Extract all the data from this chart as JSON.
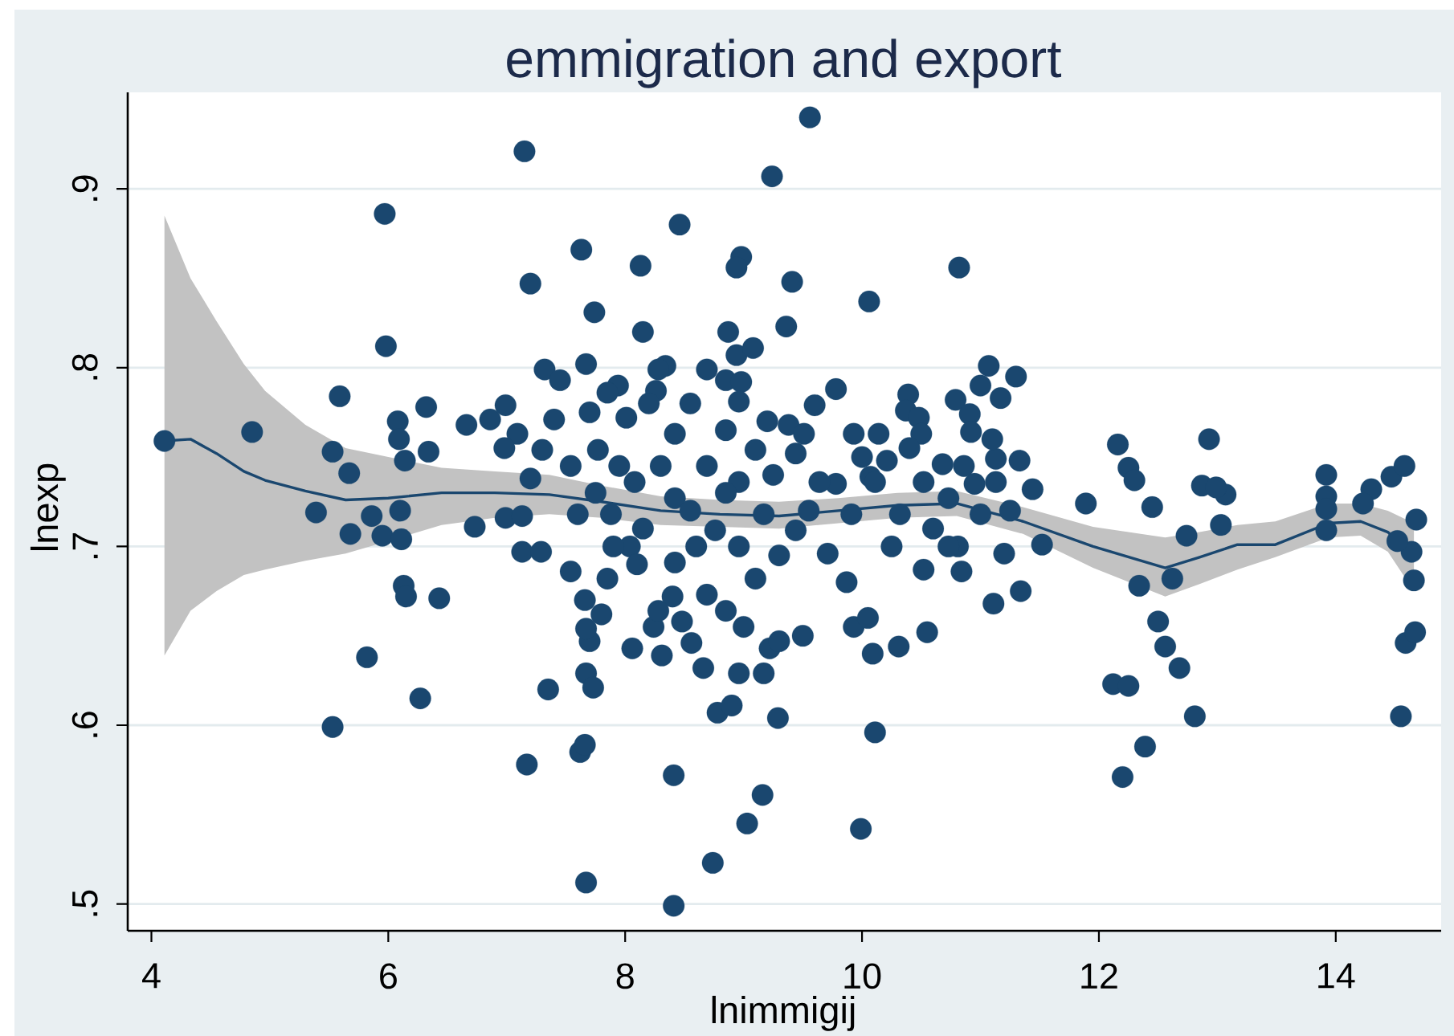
{
  "chart_data": {
    "type": "scatter",
    "title": "emmigration and export",
    "xlabel": "lnimmigij",
    "ylabel": "lnexp",
    "xlim": [
      3.8,
      14.89
    ],
    "ylim": [
      0.485,
      0.954
    ],
    "xticks": [
      4,
      6,
      8,
      10,
      12,
      14
    ],
    "yticks": [
      {
        "value": 0.5,
        "label": ".5"
      },
      {
        "value": 0.6,
        "label": ".6"
      },
      {
        "value": 0.7,
        "label": ".7"
      },
      {
        "value": 0.8,
        "label": ".8"
      },
      {
        "value": 0.9,
        "label": ".9"
      }
    ],
    "grid": "y",
    "series": [
      {
        "color": "#1a476f",
        "marker": "circle",
        "x": [
          4.11,
          4.85,
          5.59,
          5.53,
          5.67,
          5.97,
          5.98,
          6.32,
          6.08,
          6.09,
          6.14,
          6.34,
          7.15,
          7.2,
          6.66,
          6.86,
          6.99,
          7.09,
          6.98,
          7.3,
          7.2,
          7.32,
          7.45,
          7.63,
          7.74,
          7.67,
          8.13,
          8.15,
          8.46,
          8.34,
          8.87,
          8.98,
          8.94,
          9.24,
          9.36,
          9.41,
          8.94,
          9.08,
          8.85,
          8.98,
          7.94,
          8.26,
          7.4,
          9.56,
          10.06,
          10.82,
          9.6,
          9.78,
          11.07,
          11.3,
          11.0,
          11.17,
          10.79,
          10.91,
          10.92,
          10.39,
          10.37,
          10.48,
          10.5,
          9.93,
          10.14,
          9.38,
          9.44,
          12.16,
          12.25,
          12.3,
          12.93,
          12.87,
          13.07,
          12.99,
          11.89,
          12.45,
          13.92,
          13.92,
          14.3,
          14.47,
          14.58,
          14.23,
          11.44,
          11.33,
          11.13,
          10.21,
          10.68,
          9.78,
          10.07,
          5.39,
          5.68,
          5.86,
          5.95,
          6.1,
          6.11,
          6.13,
          6.15,
          6.43,
          5.82,
          6.27,
          5.53,
          6.73,
          6.99,
          7.13,
          7.13,
          7.29,
          7.35,
          7.17,
          7.62,
          7.66,
          7.67,
          8.41,
          8.41,
          8.74,
          9.03,
          9.16,
          9.29,
          8.78,
          8.9,
          7.67,
          7.73,
          8.06,
          8.31,
          8.24,
          8.66,
          8.96,
          9.17,
          9.22,
          9.3,
          8.48,
          8.4,
          7.7,
          7.67,
          7.8,
          7.66,
          7.54,
          9.0,
          8.85,
          9.99,
          10.11,
          10.09,
          10.31,
          10.55,
          9.93,
          10.05,
          9.5,
          9.87,
          11.11,
          11.34,
          10.84,
          10.81,
          11.52,
          12.74,
          13.03,
          12.62,
          12.34,
          12.5,
          12.56,
          12.68,
          12.81,
          12.12,
          12.25,
          12.39,
          12.2,
          14.55,
          14.59,
          14.67,
          14.66,
          14.64,
          14.52,
          13.92,
          13.92,
          14.68,
          7.85,
          8.01,
          7.77,
          8.08,
          7.88,
          8.04,
          7.85,
          8.42,
          8.69,
          8.42,
          8.76,
          8.42,
          8.69,
          8.96,
          9.1,
          8.96,
          9.17,
          8.96,
          9.1,
          9.51,
          9.64,
          9.44,
          9.71,
          9.91,
          10.11,
          10.32,
          10.25,
          10.52,
          10.73,
          10.86,
          11.0,
          11.13,
          10.73,
          10.52,
          11.2,
          8.28,
          8.69,
          7.54,
          7.6,
          8.28,
          8.56,
          7.7,
          7.75,
          7.95,
          8.2,
          8.15,
          8.3,
          8.55,
          8.6,
          8.85,
          8.85,
          9.2,
          9.25,
          9.3,
          9.55,
          10.0,
          10.4,
          10.6,
          10.95,
          11.25,
          11.1,
          8.1,
          7.9,
          8.55
        ],
        "values": [
          0.759,
          0.764,
          0.784,
          0.753,
          0.741,
          0.886,
          0.812,
          0.778,
          0.77,
          0.76,
          0.748,
          0.753,
          0.921,
          0.847,
          0.768,
          0.771,
          0.779,
          0.763,
          0.755,
          0.754,
          0.738,
          0.799,
          0.793,
          0.866,
          0.831,
          0.802,
          0.857,
          0.82,
          0.88,
          0.801,
          0.82,
          0.862,
          0.856,
          0.907,
          0.823,
          0.848,
          0.807,
          0.811,
          0.793,
          0.792,
          0.79,
          0.787,
          0.771,
          0.94,
          0.837,
          0.856,
          0.779,
          0.788,
          0.801,
          0.795,
          0.79,
          0.783,
          0.782,
          0.774,
          0.764,
          0.785,
          0.776,
          0.772,
          0.763,
          0.763,
          0.763,
          0.768,
          0.752,
          0.757,
          0.744,
          0.737,
          0.76,
          0.734,
          0.729,
          0.733,
          0.724,
          0.722,
          0.74,
          0.728,
          0.732,
          0.739,
          0.745,
          0.724,
          0.732,
          0.748,
          0.749,
          0.748,
          0.746,
          0.735,
          0.739,
          0.719,
          0.707,
          0.717,
          0.706,
          0.72,
          0.704,
          0.678,
          0.672,
          0.671,
          0.638,
          0.615,
          0.599,
          0.711,
          0.716,
          0.717,
          0.697,
          0.697,
          0.62,
          0.578,
          0.585,
          0.589,
          0.512,
          0.499,
          0.572,
          0.523,
          0.545,
          0.561,
          0.604,
          0.607,
          0.611,
          0.629,
          0.621,
          0.643,
          0.639,
          0.655,
          0.632,
          0.629,
          0.629,
          0.643,
          0.647,
          0.658,
          0.672,
          0.647,
          0.654,
          0.662,
          0.67,
          0.686,
          0.655,
          0.664,
          0.542,
          0.596,
          0.64,
          0.644,
          0.652,
          0.655,
          0.66,
          0.65,
          0.68,
          0.668,
          0.675,
          0.686,
          0.7,
          0.701,
          0.706,
          0.712,
          0.682,
          0.678,
          0.658,
          0.644,
          0.632,
          0.605,
          0.623,
          0.622,
          0.588,
          0.571,
          0.605,
          0.646,
          0.652,
          0.681,
          0.697,
          0.703,
          0.709,
          0.721,
          0.715,
          0.786,
          0.772,
          0.754,
          0.736,
          0.718,
          0.7,
          0.682,
          0.763,
          0.745,
          0.727,
          0.709,
          0.691,
          0.673,
          0.781,
          0.754,
          0.736,
          0.718,
          0.7,
          0.682,
          0.763,
          0.736,
          0.709,
          0.696,
          0.718,
          0.736,
          0.718,
          0.7,
          0.736,
          0.727,
          0.745,
          0.718,
          0.736,
          0.7,
          0.687,
          0.696,
          0.799,
          0.799,
          0.745,
          0.718,
          0.664,
          0.646,
          0.775,
          0.73,
          0.745,
          0.78,
          0.71,
          0.745,
          0.78,
          0.7,
          0.73,
          0.765,
          0.77,
          0.74,
          0.695,
          0.72,
          0.75,
          0.755,
          0.71,
          0.735,
          0.72,
          0.76,
          0.69,
          0.7,
          0.72
        ]
      },
      {
        "type": "line",
        "color": "#1a476f",
        "marker": "none",
        "x": [
          4.11,
          4.33,
          4.55,
          4.78,
          4.96,
          5.3,
          5.64,
          6.0,
          6.45,
          6.9,
          7.36,
          7.8,
          8.3,
          8.8,
          9.3,
          9.8,
          10.3,
          10.8,
          11.36,
          11.95,
          12.56,
          12.85,
          13.17,
          13.49,
          13.94,
          14.21,
          14.44,
          14.66
        ],
        "values": [
          0.759,
          0.76,
          0.752,
          0.742,
          0.737,
          0.731,
          0.726,
          0.727,
          0.73,
          0.73,
          0.729,
          0.725,
          0.72,
          0.718,
          0.717,
          0.72,
          0.723,
          0.724,
          0.714,
          0.7,
          0.688,
          0.694,
          0.701,
          0.701,
          0.713,
          0.714,
          0.708,
          0.694
        ],
        "lower": [
          0.639,
          0.664,
          0.675,
          0.684,
          0.687,
          0.692,
          0.696,
          0.703,
          0.712,
          0.716,
          0.718,
          0.716,
          0.712,
          0.711,
          0.71,
          0.713,
          0.716,
          0.717,
          0.707,
          0.688,
          0.672,
          0.679,
          0.687,
          0.694,
          0.705,
          0.706,
          0.697,
          0.675
        ],
        "upper": [
          0.885,
          0.85,
          0.826,
          0.802,
          0.787,
          0.768,
          0.755,
          0.75,
          0.744,
          0.742,
          0.74,
          0.734,
          0.728,
          0.726,
          0.725,
          0.727,
          0.73,
          0.731,
          0.722,
          0.711,
          0.705,
          0.708,
          0.712,
          0.714,
          0.724,
          0.724,
          0.72,
          0.713
        ]
      }
    ]
  }
}
